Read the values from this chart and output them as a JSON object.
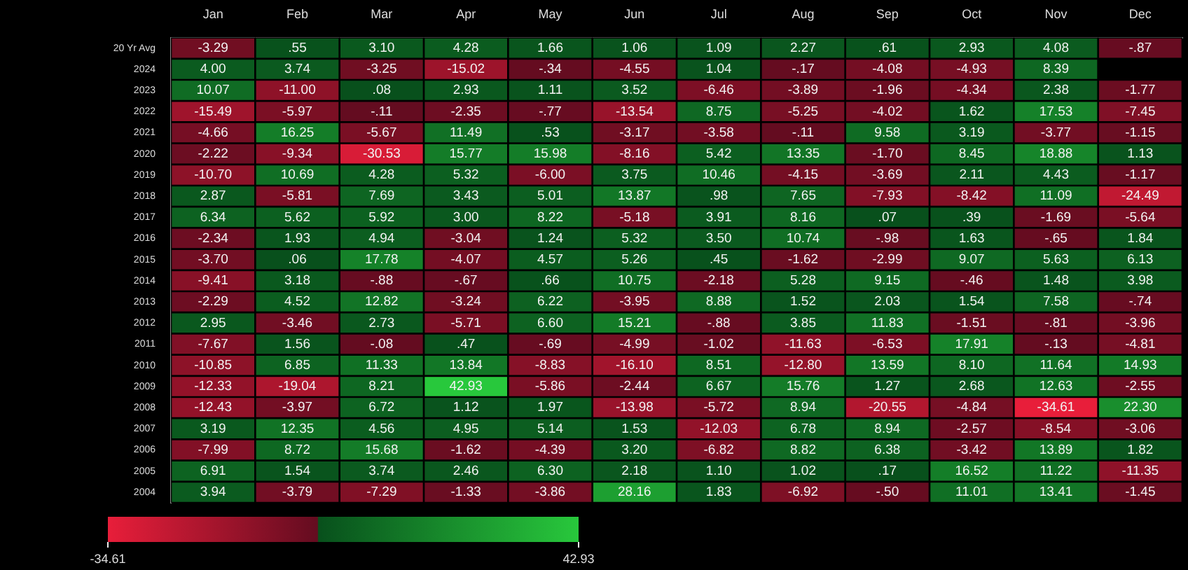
{
  "chart_data": {
    "type": "heatmap",
    "categories": [
      "Jan",
      "Feb",
      "Mar",
      "Apr",
      "May",
      "Jun",
      "Jul",
      "Aug",
      "Sep",
      "Oct",
      "Nov",
      "Dec"
    ],
    "y_categories": [
      "20 Yr Avg",
      "2024",
      "2023",
      "2022",
      "2021",
      "2020",
      "2019",
      "2018",
      "2017",
      "2016",
      "2015",
      "2014",
      "2013",
      "2012",
      "2011",
      "2010",
      "2009",
      "2008",
      "2007",
      "2006",
      "2005",
      "2004"
    ],
    "cells": [
      [
        -3.29,
        0.55,
        3.1,
        4.28,
        1.66,
        1.06,
        1.09,
        2.27,
        0.61,
        2.93,
        4.08,
        -0.87
      ],
      [
        4.0,
        3.74,
        -3.25,
        -15.02,
        -0.34,
        -4.55,
        1.04,
        -0.17,
        -4.08,
        -4.93,
        8.39,
        null
      ],
      [
        10.07,
        -11.0,
        0.08,
        2.93,
        1.11,
        3.52,
        -6.46,
        -3.89,
        -1.96,
        -4.34,
        2.38,
        -1.77
      ],
      [
        -15.49,
        -5.97,
        -0.11,
        -2.35,
        -0.77,
        -13.54,
        8.75,
        -5.25,
        -4.02,
        1.62,
        17.53,
        -7.45
      ],
      [
        -4.66,
        16.25,
        -5.67,
        11.49,
        0.53,
        -3.17,
        -3.58,
        -0.11,
        9.58,
        3.19,
        -3.77,
        -1.15
      ],
      [
        -2.22,
        -9.34,
        -30.53,
        15.77,
        15.98,
        -8.16,
        5.42,
        13.35,
        -1.7,
        8.45,
        18.88,
        1.13
      ],
      [
        -10.7,
        10.69,
        4.28,
        5.32,
        -6.0,
        3.75,
        10.46,
        -4.15,
        -3.69,
        2.11,
        4.43,
        -1.17
      ],
      [
        2.87,
        -5.81,
        7.69,
        3.43,
        5.01,
        13.87,
        0.98,
        7.65,
        -7.93,
        -8.42,
        11.09,
        -24.49
      ],
      [
        6.34,
        5.62,
        5.92,
        3.0,
        8.22,
        -5.18,
        3.91,
        8.16,
        0.07,
        0.39,
        -1.69,
        -5.64
      ],
      [
        -2.34,
        1.93,
        4.94,
        -3.04,
        1.24,
        5.32,
        3.5,
        10.74,
        -0.98,
        1.63,
        -0.65,
        1.84
      ],
      [
        -3.7,
        0.06,
        17.78,
        -4.07,
        4.57,
        5.26,
        0.45,
        -1.62,
        -2.99,
        9.07,
        5.63,
        6.13
      ],
      [
        -9.41,
        3.18,
        -0.88,
        -0.67,
        0.66,
        10.75,
        -2.18,
        5.28,
        9.15,
        -0.46,
        1.48,
        3.98
      ],
      [
        -2.29,
        4.52,
        12.82,
        -3.24,
        6.22,
        -3.95,
        8.88,
        1.52,
        2.03,
        1.54,
        7.58,
        -0.74
      ],
      [
        2.95,
        -3.46,
        2.73,
        -5.71,
        6.6,
        15.21,
        -0.88,
        3.85,
        11.83,
        -1.51,
        -0.81,
        -3.96
      ],
      [
        -7.67,
        1.56,
        -0.08,
        0.47,
        -0.69,
        -4.99,
        -1.02,
        -11.63,
        -6.53,
        17.91,
        -0.13,
        -4.81
      ],
      [
        -10.85,
        6.85,
        11.33,
        13.84,
        -8.83,
        -16.1,
        8.51,
        -12.8,
        13.59,
        8.1,
        11.64,
        14.93
      ],
      [
        -12.33,
        -19.04,
        8.21,
        42.93,
        -5.86,
        -2.44,
        6.67,
        15.76,
        1.27,
        2.68,
        12.63,
        -2.55
      ],
      [
        -12.43,
        -3.97,
        6.72,
        1.12,
        1.97,
        -13.98,
        -5.72,
        8.94,
        -20.55,
        -4.84,
        -34.61,
        22.3
      ],
      [
        3.19,
        12.35,
        4.56,
        4.95,
        5.14,
        1.53,
        -12.03,
        6.78,
        8.94,
        -2.57,
        -8.54,
        -3.06
      ],
      [
        -7.99,
        8.72,
        15.68,
        -1.62,
        -4.39,
        3.2,
        -6.82,
        8.82,
        6.38,
        -3.42,
        13.89,
        1.82
      ],
      [
        6.91,
        1.54,
        3.74,
        2.46,
        6.3,
        2.18,
        1.1,
        1.02,
        0.17,
        16.52,
        11.22,
        -11.35
      ],
      [
        3.94,
        -3.79,
        -7.29,
        -1.33,
        -3.86,
        28.16,
        1.83,
        -6.92,
        -0.5,
        11.01,
        13.41,
        -1.45
      ]
    ],
    "cell_labels": [
      [
        "-3.29",
        ".55",
        "3.10",
        "4.28",
        "1.66",
        "1.06",
        "1.09",
        "2.27",
        ".61",
        "2.93",
        "4.08",
        "-.87"
      ],
      [
        "4.00",
        "3.74",
        "-3.25",
        "-15.02",
        "-.34",
        "-4.55",
        "1.04",
        "-.17",
        "-4.08",
        "-4.93",
        "8.39",
        null
      ],
      [
        "10.07",
        "-11.00",
        ".08",
        "2.93",
        "1.11",
        "3.52",
        "-6.46",
        "-3.89",
        "-1.96",
        "-4.34",
        "2.38",
        "-1.77"
      ],
      [
        "-15.49",
        "-5.97",
        "-.11",
        "-2.35",
        "-.77",
        "-13.54",
        "8.75",
        "-5.25",
        "-4.02",
        "1.62",
        "17.53",
        "-7.45"
      ],
      [
        "-4.66",
        "16.25",
        "-5.67",
        "11.49",
        ".53",
        "-3.17",
        "-3.58",
        "-.11",
        "9.58",
        "3.19",
        "-3.77",
        "-1.15"
      ],
      [
        "-2.22",
        "-9.34",
        "-30.53",
        "15.77",
        "15.98",
        "-8.16",
        "5.42",
        "13.35",
        "-1.70",
        "8.45",
        "18.88",
        "1.13"
      ],
      [
        "-10.70",
        "10.69",
        "4.28",
        "5.32",
        "-6.00",
        "3.75",
        "10.46",
        "-4.15",
        "-3.69",
        "2.11",
        "4.43",
        "-1.17"
      ],
      [
        "2.87",
        "-5.81",
        "7.69",
        "3.43",
        "5.01",
        "13.87",
        ".98",
        "7.65",
        "-7.93",
        "-8.42",
        "11.09",
        "-24.49"
      ],
      [
        "6.34",
        "5.62",
        "5.92",
        "3.00",
        "8.22",
        "-5.18",
        "3.91",
        "8.16",
        ".07",
        ".39",
        "-1.69",
        "-5.64"
      ],
      [
        "-2.34",
        "1.93",
        "4.94",
        "-3.04",
        "1.24",
        "5.32",
        "3.50",
        "10.74",
        "-.98",
        "1.63",
        "-.65",
        "1.84"
      ],
      [
        "-3.70",
        ".06",
        "17.78",
        "-4.07",
        "4.57",
        "5.26",
        ".45",
        "-1.62",
        "-2.99",
        "9.07",
        "5.63",
        "6.13"
      ],
      [
        "-9.41",
        "3.18",
        "-.88",
        "-.67",
        ".66",
        "10.75",
        "-2.18",
        "5.28",
        "9.15",
        "-.46",
        "1.48",
        "3.98"
      ],
      [
        "-2.29",
        "4.52",
        "12.82",
        "-3.24",
        "6.22",
        "-3.95",
        "8.88",
        "1.52",
        "2.03",
        "1.54",
        "7.58",
        "-.74"
      ],
      [
        "2.95",
        "-3.46",
        "2.73",
        "-5.71",
        "6.60",
        "15.21",
        "-.88",
        "3.85",
        "11.83",
        "-1.51",
        "-.81",
        "-3.96"
      ],
      [
        "-7.67",
        "1.56",
        "-.08",
        ".47",
        "-.69",
        "-4.99",
        "-1.02",
        "-11.63",
        "-6.53",
        "17.91",
        "-.13",
        "-4.81"
      ],
      [
        "-10.85",
        "6.85",
        "11.33",
        "13.84",
        "-8.83",
        "-16.10",
        "8.51",
        "-12.80",
        "13.59",
        "8.10",
        "11.64",
        "14.93"
      ],
      [
        "-12.33",
        "-19.04",
        "8.21",
        "42.93",
        "-5.86",
        "-2.44",
        "6.67",
        "15.76",
        "1.27",
        "2.68",
        "12.63",
        "-2.55"
      ],
      [
        "-12.43",
        "-3.97",
        "6.72",
        "1.12",
        "1.97",
        "-13.98",
        "-5.72",
        "8.94",
        "-20.55",
        "-4.84",
        "-34.61",
        "22.30"
      ],
      [
        "3.19",
        "12.35",
        "4.56",
        "4.95",
        "5.14",
        "1.53",
        "-12.03",
        "6.78",
        "8.94",
        "-2.57",
        "-8.54",
        "-3.06"
      ],
      [
        "-7.99",
        "8.72",
        "15.68",
        "-1.62",
        "-4.39",
        "3.20",
        "-6.82",
        "8.82",
        "6.38",
        "-3.42",
        "13.89",
        "1.82"
      ],
      [
        "6.91",
        "1.54",
        "3.74",
        "2.46",
        "6.30",
        "2.18",
        "1.10",
        "1.02",
        ".17",
        "16.52",
        "11.22",
        "-11.35"
      ],
      [
        "3.94",
        "-3.79",
        "-7.29",
        "-1.33",
        "-3.86",
        "28.16",
        "1.83",
        "-6.92",
        "-.50",
        "11.01",
        "13.41",
        "-1.45"
      ]
    ],
    "clim": [
      -34.61,
      42.93
    ],
    "cticks": [
      -34.61,
      42.93
    ]
  }
}
